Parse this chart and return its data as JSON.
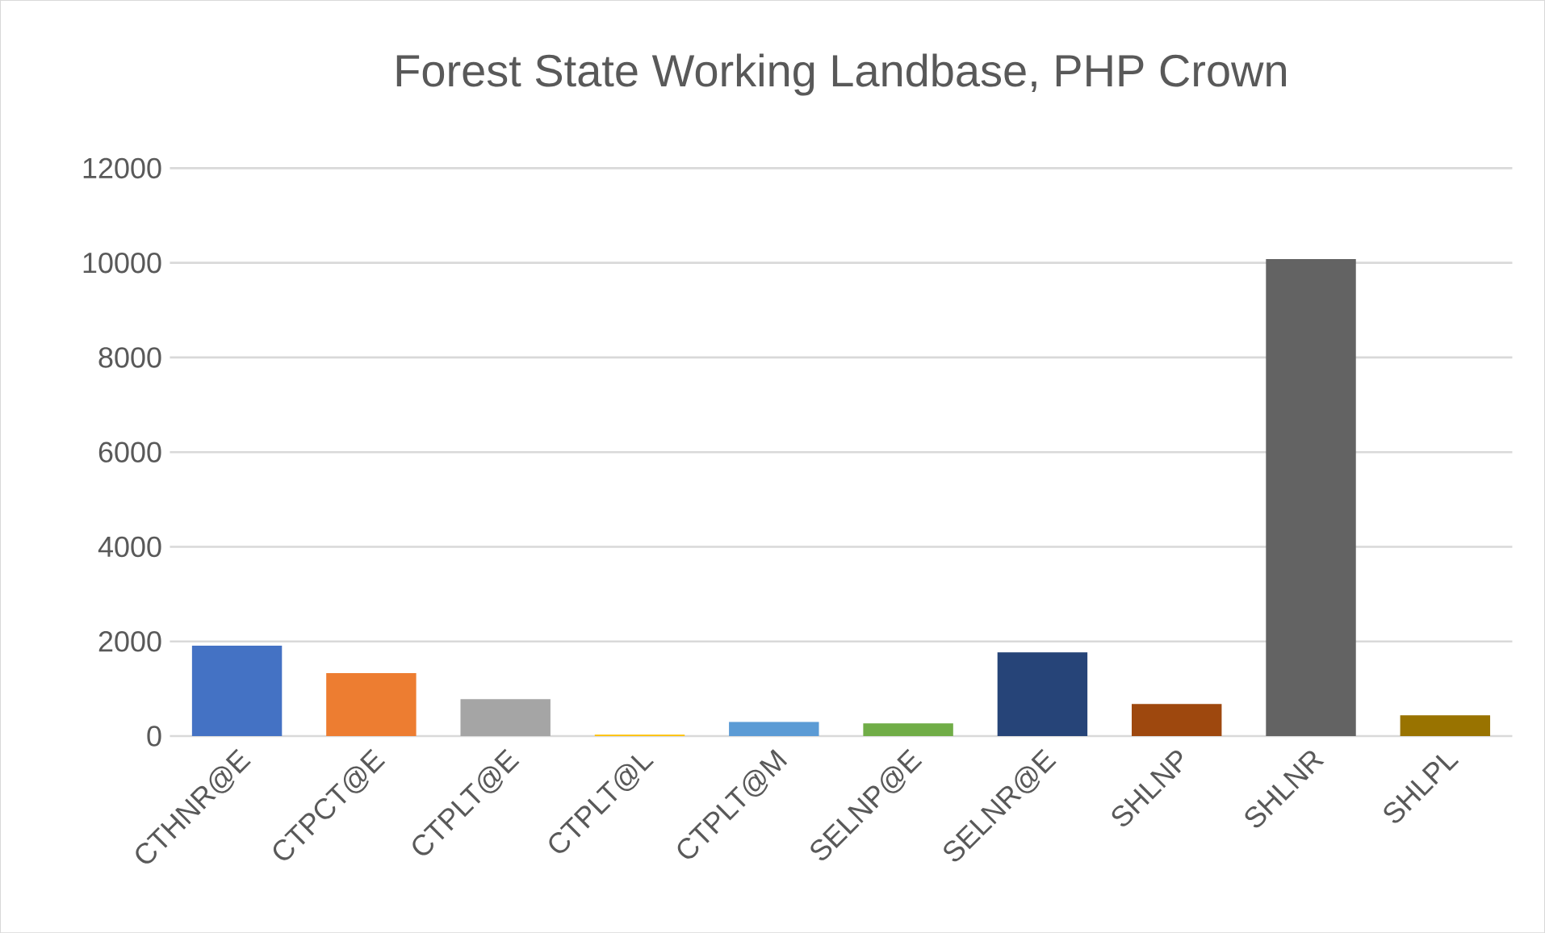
{
  "chart_data": {
    "type": "bar",
    "title": "Forest State Working Landbase, PHP Crown",
    "categories": [
      "CTHNR@E",
      "CTPCT@E",
      "CTPLT@E",
      "CTPLT@L",
      "CTPLT@M",
      "SELNP@E",
      "SELNR@E",
      "SHLNP",
      "SHLNR",
      "SHLPL"
    ],
    "values": [
      1910,
      1330,
      780,
      30,
      300,
      270,
      1770,
      680,
      10080,
      440
    ],
    "colors": [
      "#4472c4",
      "#ed7d31",
      "#a5a5a5",
      "#ffc000",
      "#5b9bd5",
      "#70ad47",
      "#264478",
      "#9e480e",
      "#636363",
      "#997300"
    ],
    "ylim": [
      0,
      12000
    ],
    "yticks": [
      0,
      2000,
      4000,
      6000,
      8000,
      10000,
      12000
    ],
    "grid": "y"
  }
}
